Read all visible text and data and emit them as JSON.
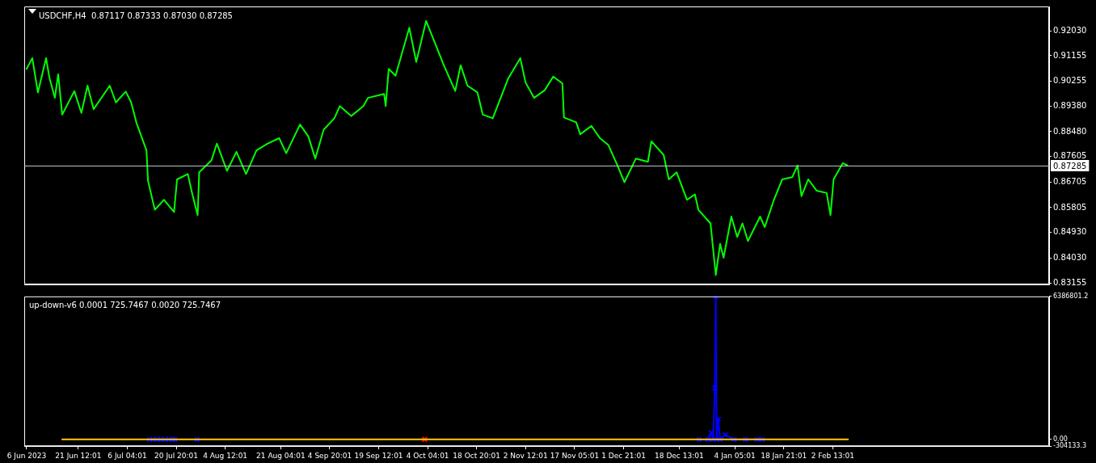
{
  "chart_data": [
    {
      "type": "line",
      "title": "USDCHF,H4  0.87117 0.87333 0.87030 0.87285",
      "xlim": [
        "2023-06-05T07:00",
        "2024-04-07T09:00"
      ],
      "ylim": [
        0.83101,
        0.92888
      ],
      "yticks": [
        {
          "value": 0.9203,
          "label": "0.92030"
        },
        0.91155,
        0.90255,
        {
          "value": 0.8938,
          "label": "0.89380"
        },
        {
          "value": 0.8848,
          "label": "0.88480"
        },
        0.87605,
        0.86705,
        0.85805,
        {
          "value": 0.8493,
          "label": "0.84930"
        },
        {
          "value": 0.8403,
          "label": "0.84030"
        },
        0.83155
      ],
      "tick_labels": "y",
      "grid": false,
      "legend": false,
      "ref_lines": [
        {
          "axis": "y",
          "value": 0.87285,
          "label": "0.87285",
          "color": "#c0c8d0"
        }
      ],
      "series": [
        {
          "color": "#00ff00",
          "marker": "none",
          "x": [
            "2023-06-06T00:00",
            "2023-06-07T17:00",
            "2023-06-09T09:00",
            "2023-06-11T20:00",
            "2023-06-12T19:00",
            "2023-06-14T11:00",
            "2023-06-15T11:00",
            "2023-06-16T16:00",
            "2023-06-20T07:00",
            "2023-06-22T10:00",
            "2023-06-24T06:00",
            "2023-06-26T02:00",
            "2023-06-30T22:00",
            "2023-07-02T18:00",
            "2023-07-05T17:00",
            "2023-07-07T08:00",
            "2023-07-08T22:00",
            "2023-07-11T22:00",
            "2023-07-12T09:00",
            "2023-07-14T10:00",
            "2023-07-17T04:00",
            "2023-07-20T04:00",
            "2023-07-21T02:00",
            "2023-07-24T07:00",
            "2023-07-25T16:00",
            "2023-07-27T06:00",
            "2023-07-27T17:00",
            "2023-07-31T09:00",
            "2023-08-02T00:00",
            "2023-08-05T01:00",
            "2023-08-07T21:00",
            "2023-08-10T18:00",
            "2023-08-13T21:00",
            "2023-08-17T06:00",
            "2023-08-20T16:00",
            "2023-08-22T19:00",
            "2023-08-26T22:00",
            "2023-08-29T10:00",
            "2023-08-31T12:00",
            "2023-09-03T00:00",
            "2023-09-06T05:00",
            "2023-09-07T20:00",
            "2023-09-11T06:00",
            "2023-09-14T22:00",
            "2023-09-16T07:00",
            "2023-09-21T03:00",
            "2023-09-21T14:00",
            "2023-09-22T12:00",
            "2023-09-24T13:00",
            "2023-09-28T16:00",
            "2023-09-30T18:00",
            "2023-10-03T17:00",
            "2023-10-05T08:00",
            "2023-10-09T00:00",
            "2023-10-12T10:00",
            "2023-10-14T01:00",
            "2023-10-16T02:00",
            "2023-10-19T02:00",
            "2023-10-20T16:00",
            "2023-10-23T16:00",
            "2023-10-28T06:00",
            "2023-10-31T22:00",
            "2023-11-02T12:00",
            "2023-11-05T01:00",
            "2023-11-08T06:00",
            "2023-11-10T19:00",
            "2023-11-13T13:00",
            "2023-11-14T00:00",
            "2023-11-17T16:00",
            "2023-11-18T21:00",
            "2023-11-22T06:00",
            "2023-11-24T19:00",
            "2023-11-27T07:00",
            "2023-11-30T01:00",
            "2023-12-02T03:00",
            "2023-12-05T13:00",
            "2023-12-09T04:00",
            "2023-12-10T05:00",
            "2023-12-13T21:00",
            "2023-12-15T10:00",
            "2023-12-17T18:00",
            "2023-12-20T21:00",
            "2023-12-23T06:00",
            "2023-12-24T07:00",
            "2023-12-27T22:00",
            "2023-12-29T12:00",
            "2023-12-30T19:00",
            "2023-12-31T20:00",
            "2024-01-03T04:00",
            "2024-01-04T22:00",
            "2024-01-06T12:00",
            "2024-01-08T03:00",
            "2024-01-11T19:00",
            "2024-01-13T04:00",
            "2024-01-15T22:00",
            "2024-01-18T10:00",
            "2024-01-21T10:00",
            "2024-01-23T00:00",
            "2024-01-24T04:00",
            "2024-01-26T05:00",
            "2024-01-28T18:00",
            "2024-01-31T17:00",
            "2024-02-01T21:00",
            "2024-02-02T19:00",
            "2024-02-05T13:00",
            "2024-02-06T22:00"
          ],
          "values": [
            0.9069,
            0.9107,
            0.8986,
            0.9107,
            0.904,
            0.8967,
            0.905,
            0.8908,
            0.8991,
            0.8914,
            0.901,
            0.8927,
            0.901,
            0.8951,
            0.8989,
            0.8951,
            0.8879,
            0.8782,
            0.8675,
            0.8573,
            0.8608,
            0.8565,
            0.868,
            0.8699,
            0.8627,
            0.8554,
            0.8705,
            0.8747,
            0.8806,
            0.871,
            0.8777,
            0.8699,
            0.8782,
            0.8806,
            0.8825,
            0.8772,
            0.8873,
            0.8831,
            0.8753,
            0.8855,
            0.8895,
            0.8938,
            0.8903,
            0.8938,
            0.8967,
            0.8981,
            0.8938,
            0.9069,
            0.9045,
            0.9214,
            0.9093,
            0.9238,
            0.919,
            0.9082,
            0.8991,
            0.9082,
            0.901,
            0.8986,
            0.8908,
            0.8895,
            0.9034,
            0.9107,
            0.9021,
            0.8967,
            0.8994,
            0.9042,
            0.9018,
            0.8898,
            0.8881,
            0.8839,
            0.8868,
            0.8825,
            0.8801,
            0.8729,
            0.867,
            0.8753,
            0.8742,
            0.8814,
            0.8766,
            0.868,
            0.8705,
            0.8608,
            0.8627,
            0.8573,
            0.8525,
            0.8343,
            0.8453,
            0.8404,
            0.8549,
            0.8477,
            0.8525,
            0.8463,
            0.8549,
            0.8512,
            0.8608,
            0.868,
            0.8688,
            0.8729,
            0.8621,
            0.868,
            0.864,
            0.8632,
            0.8554,
            0.868,
            0.8737,
            0.8729
          ]
        }
      ]
    },
    {
      "type": "line",
      "title": "up-down-v6 0.0001 725.7467 0.0020 725.7467",
      "xlim": [
        "2023-06-05T07:00",
        "2024-04-07T09:00"
      ],
      "xticks": [
        {
          "value": "2023-06-06T00:00",
          "label": "6 Jun 2023"
        },
        {
          "value": "2023-06-21T12:01",
          "label": "21 Jun 12:01"
        },
        {
          "value": "2023-07-06T04:01",
          "label": "6 Jul 04:01"
        },
        {
          "value": "2023-07-20T20:01",
          "label": "20 Jul 20:01"
        },
        {
          "value": "2023-08-04T12:01",
          "label": "4 Aug 12:01"
        },
        {
          "value": "2023-08-21T04:01",
          "label": "21 Aug 04:01"
        },
        {
          "value": "2023-09-04T20:01",
          "label": "4 Sep 20:01"
        },
        {
          "value": "2023-09-19T12:01",
          "label": "19 Sep 12:01"
        },
        {
          "value": "2023-10-04T04:01",
          "label": "4 Oct 04:01"
        },
        {
          "value": "2023-10-18T20:01",
          "label": "18 Oct 20:01"
        },
        {
          "value": "2023-11-02T12:01",
          "label": "2 Nov 12:01"
        },
        {
          "value": "2023-11-17T05:01",
          "label": "17 Nov 05:01"
        },
        {
          "value": "2023-12-01T21:01",
          "label": "1 Dec 21:01"
        },
        {
          "value": "2023-12-18T13:01",
          "label": "18 Dec 13:01"
        },
        {
          "value": "2024-01-04T05:01",
          "label": "4 Jan 05:01"
        },
        {
          "value": "2024-01-18T21:01",
          "label": "18 Jan 21:01"
        },
        {
          "value": "2024-02-02T13:01",
          "label": "2 Feb 13:01"
        }
      ],
      "ylim": [
        -304133.3,
        6386801.2
      ],
      "yticks": [
        -304133.3,
        {
          "value": 0,
          "label": "0.00"
        },
        6386801.2
      ],
      "grid": false,
      "legend": false,
      "series": [
        {
          "color": "#ffcc00",
          "marker": "none",
          "x": [
            "2023-06-16T16:00",
            "2024-02-07T03:00"
          ],
          "values": [
            0,
            0
          ]
        },
        {
          "color": "#0000ff",
          "marker": "cross",
          "x": [
            "2023-07-12T20:00",
            "2023-07-13T23:00",
            "2023-07-15T03:00",
            "2023-07-16T06:00",
            "2023-07-17T10:00",
            "2023-07-18T13:00",
            "2023-07-19T17:00",
            "2023-07-20T09:00",
            "2023-07-22T16:00",
            "2023-07-27T01:00",
            "2023-07-29T13:00",
            "2023-12-24T13:00",
            "2023-12-27T03:00",
            "2023-12-28T04:00",
            "2023-12-28T17:00",
            "2023-12-29T05:00",
            "2023-12-29T12:00",
            "2023-12-29T18:00",
            "2023-12-30T06:00",
            "2023-12-30T19:00",
            "2024-01-01T08:00",
            "2024-01-03T23:00",
            "2024-01-07T10:00",
            "2024-01-10T21:00",
            "2024-01-12T11:00"
          ],
          "values": [
            0,
            0,
            0,
            0,
            0,
            0,
            0,
            0,
            null,
            0,
            null,
            0,
            0,
            300000,
            0,
            2300000,
            6386801.2,
            0,
            900000,
            0,
            200000,
            0,
            0,
            0,
            0
          ]
        },
        {
          "type": "scatter",
          "color": "#ff0000",
          "marker": "cross",
          "x": [
            "2023-10-03T06:00"
          ],
          "values": [
            0
          ]
        }
      ]
    }
  ]
}
